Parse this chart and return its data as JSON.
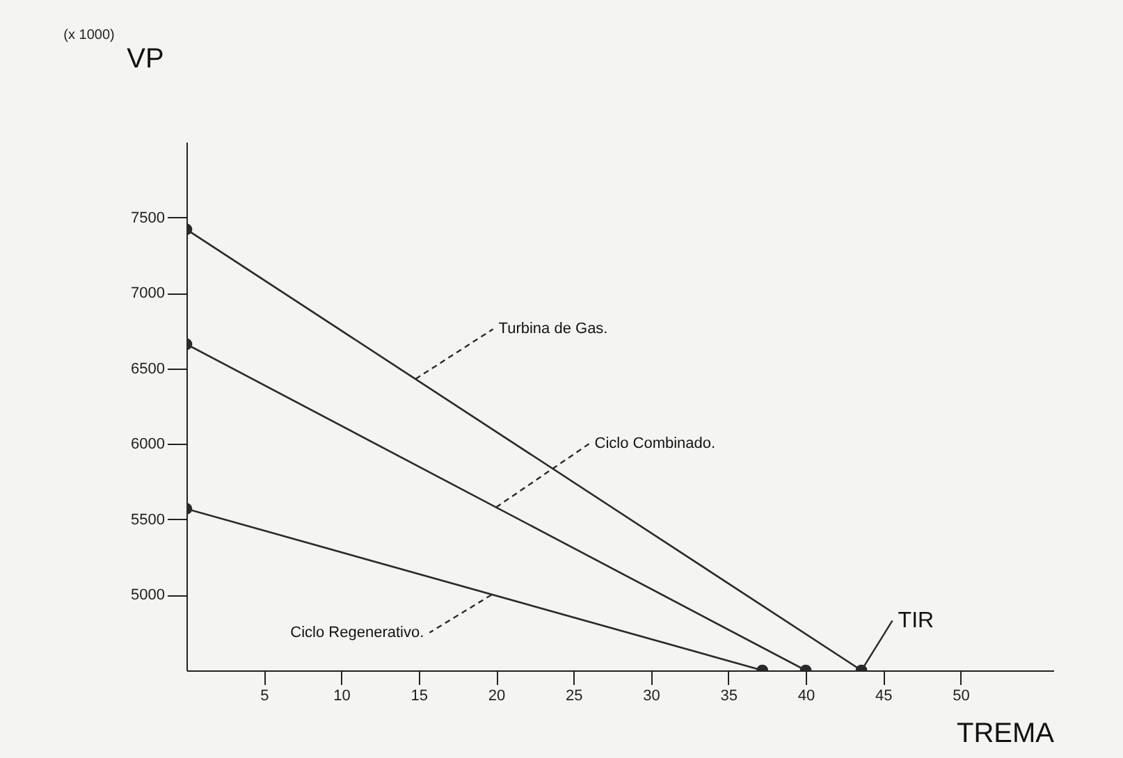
{
  "chart_data": {
    "type": "line",
    "xlabel": "TREMA",
    "ylabel": "VP",
    "subtitle": "(x 1000)",
    "xlim": [
      0,
      56
    ],
    "xticks": [
      5,
      10,
      15,
      20,
      25,
      30,
      35,
      40,
      45,
      50
    ],
    "ylim": [
      4500,
      8000
    ],
    "yticks": [
      5000,
      5500,
      6000,
      6500,
      7000,
      7500
    ],
    "grid": false,
    "legend": false,
    "marker": "circle",
    "line_style": "solid",
    "series": [
      {
        "color": "#2a2a2a",
        "x": [
          0,
          43.6
        ],
        "values": [
          7420,
          4500
        ]
      },
      {
        "color": "#2a2a2a",
        "x": [
          0,
          40
        ],
        "values": [
          6660,
          4500
        ]
      },
      {
        "color": "#2a2a2a",
        "x": [
          0,
          37.2
        ],
        "values": [
          5570,
          4500
        ]
      }
    ],
    "annotations": [
      {
        "text": "Turbina de Gas.",
        "x": 14.8,
        "y": 6430
      },
      {
        "text": "Ciclo Combinado.",
        "x": 20,
        "y": 5580
      },
      {
        "text": "Ciclo Regenerativo.",
        "x": 19.7,
        "y": 5000
      },
      {
        "text": "TIR",
        "x": 43.6,
        "y": 4500
      }
    ]
  }
}
